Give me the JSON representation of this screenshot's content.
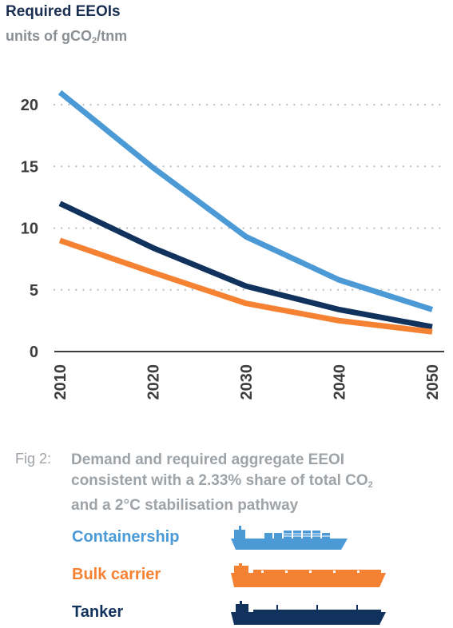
{
  "header": {
    "title": "Required EEOIs",
    "subtitle_pre": "units of gCO",
    "subtitle_sub": "2",
    "subtitle_post": "/tnm"
  },
  "chart_data": {
    "type": "line",
    "title": "Required EEOIs",
    "ylabel": "units of gCO2/tnm",
    "xlabel": "",
    "x": [
      2010,
      2020,
      2030,
      2040,
      2050
    ],
    "x_ticks": [
      "2010",
      "2020",
      "2030",
      "2040",
      "2050"
    ],
    "y_ticks": [
      "0",
      "5",
      "10",
      "15",
      "20"
    ],
    "y_tick_values": [
      0,
      5,
      10,
      15,
      20
    ],
    "ylim": [
      0,
      21.5
    ],
    "grid": "horizontal dotted",
    "series": [
      {
        "name": "Containership",
        "color": "#4b9ad6",
        "values": [
          21.0,
          14.9,
          9.3,
          5.8,
          3.4
        ]
      },
      {
        "name": "Tanker",
        "color": "#12325e",
        "values": [
          12.0,
          8.4,
          5.3,
          3.4,
          2.0
        ]
      },
      {
        "name": "Bulk carrier",
        "color": "#f58232",
        "values": [
          9.0,
          6.4,
          3.9,
          2.5,
          1.6
        ]
      }
    ]
  },
  "caption": {
    "label": "Fig 2:",
    "line1": "Demand and required aggregate EEOI",
    "line2_pre": "consistent with a 2.33% share of total CO",
    "line2_sub": "2",
    "line3": "and a 2°C stabilisation pathway"
  },
  "legend": [
    {
      "label": "Containership",
      "color": "#4b9ad6",
      "icon": "containership-icon"
    },
    {
      "label": "Bulk carrier",
      "color": "#f58232",
      "icon": "bulk-carrier-icon"
    },
    {
      "label": "Tanker",
      "color": "#12325e",
      "icon": "tanker-icon"
    }
  ]
}
